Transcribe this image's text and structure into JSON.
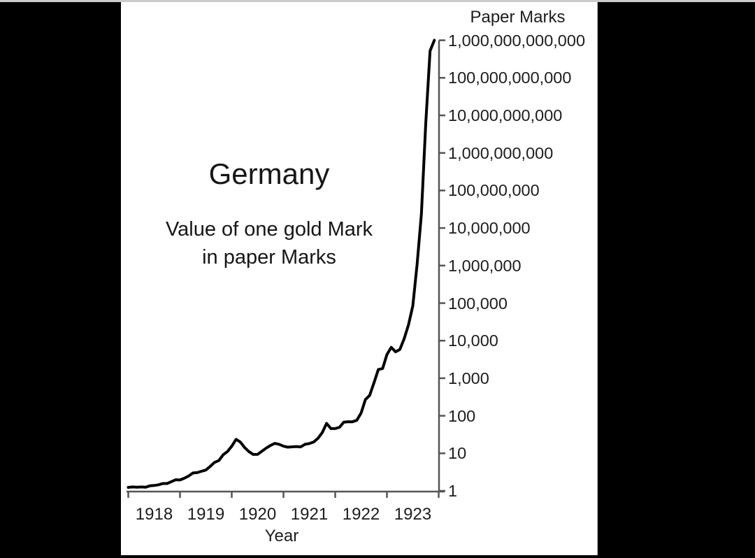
{
  "frame": {
    "background_color": "#000000",
    "panel_color": "#ffffff",
    "top_strip_color": "#cbcbcb"
  },
  "titles": {
    "country": "Germany",
    "subtitle_line1": "Value of one gold Mark",
    "subtitle_line2": "in paper Marks"
  },
  "chart_data": {
    "type": "line",
    "title": "Germany",
    "subtitle": "Value of one gold Mark in paper Marks",
    "xlabel": "Year",
    "ylabel": "Paper Marks",
    "y_scale": "log10",
    "ylim": [
      1,
      1000000000000
    ],
    "y_axis_side": "right",
    "grid": false,
    "legend": "none",
    "line_color": "#000000",
    "axis_color": "#555555",
    "y_ticks": [
      1,
      10,
      100,
      1000,
      10000,
      100000,
      1000000,
      10000000,
      100000000,
      1000000000,
      10000000000,
      100000000000,
      1000000000000
    ],
    "y_tick_labels": [
      "1",
      "10",
      "100",
      "1,000",
      "10,000",
      "100,000",
      "1,000,000",
      "10,000,000",
      "100,000,000",
      "1,000,000,000",
      "10,000,000,000",
      "100,000,000,000",
      "1,000,000,000,000"
    ],
    "x_tick_years": [
      "1918",
      "1919",
      "1920",
      "1921",
      "1922",
      "1923"
    ],
    "series": [
      {
        "name": "Value of one gold Mark in paper Marks",
        "start": "1918-01",
        "frequency": "monthly",
        "values": [
          1.24,
          1.27,
          1.25,
          1.27,
          1.25,
          1.36,
          1.39,
          1.45,
          1.57,
          1.57,
          1.76,
          1.98,
          1.95,
          2.17,
          2.48,
          3.0,
          3.06,
          3.34,
          3.59,
          4.48,
          5.73,
          6.39,
          9.12,
          11.14,
          15.43,
          23.6,
          19.97,
          14.2,
          11.07,
          9.32,
          9.4,
          11.37,
          13.81,
          16.23,
          18.39,
          17.38,
          15.46,
          14.6,
          14.87,
          15.13,
          14.83,
          17.41,
          18.26,
          20.07,
          24.98,
          35.76,
          62.64,
          45.72,
          45.69,
          49.51,
          67.7,
          69.32,
          69.11,
          75.62,
          117.49,
          270.26,
          349.18,
          757.73,
          1711.08,
          1807.83,
          4281.45,
          6650,
          5048.87,
          5826.43,
          11355,
          26202,
          84186,
          1100632,
          23540000,
          6014300000,
          522286000000,
          1000000000000
        ]
      }
    ]
  }
}
